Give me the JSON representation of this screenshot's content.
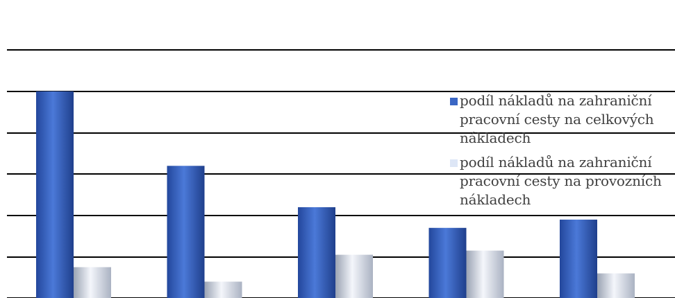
{
  "chart_data": {
    "type": "bar",
    "title": "",
    "xlabel": "",
    "ylabel": "",
    "grid": true,
    "legend_position": "right",
    "ylim": [
      0,
      7
    ],
    "categories": [
      "",
      "",
      "",
      "",
      ""
    ],
    "series": [
      {
        "name": "podíl nákladů na zahraniční pracovní cesty na celkových nákladech",
        "color": "#3a66c4",
        "values": [
          6.0,
          4.2,
          3.2,
          2.7,
          2.9
        ]
      },
      {
        "name": "podíl nákladů na zahraniční pracovní cesty na provozních nákladech",
        "color": "#dde6f6",
        "values": [
          1.75,
          1.4,
          2.05,
          2.15,
          1.6
        ]
      }
    ]
  }
}
